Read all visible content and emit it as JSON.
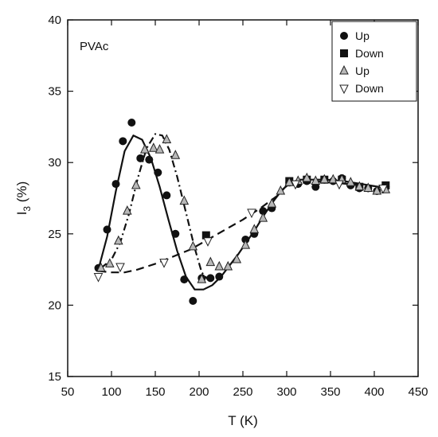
{
  "chart_data": {
    "type": "scatter",
    "title": "",
    "annotation": "PVAc",
    "xlabel": "T (K)",
    "ylabel_main": "I",
    "ylabel_sub": "3",
    "ylabel_rest": " (%)",
    "xlim": [
      50,
      450
    ],
    "ylim": [
      15,
      40
    ],
    "xticks": [
      50,
      100,
      150,
      200,
      250,
      300,
      350,
      400,
      450
    ],
    "yticks": [
      15,
      20,
      25,
      30,
      35,
      40
    ],
    "legend_position": "top-right",
    "series": [
      {
        "name": "Up",
        "marker": "circle",
        "points": [
          [
            85,
            22.6
          ],
          [
            95,
            25.3
          ],
          [
            105,
            28.5
          ],
          [
            113,
            31.5
          ],
          [
            123,
            32.8
          ],
          [
            133,
            30.3
          ],
          [
            143,
            30.2
          ],
          [
            153,
            29.3
          ],
          [
            163,
            27.7
          ],
          [
            173,
            25.0
          ],
          [
            183,
            21.8
          ],
          [
            193,
            20.3
          ],
          [
            203,
            21.9
          ],
          [
            213,
            21.9
          ],
          [
            223,
            22.0
          ],
          [
            253,
            24.6
          ],
          [
            263,
            25.0
          ],
          [
            273,
            26.6
          ],
          [
            283,
            26.8
          ],
          [
            303,
            28.6
          ],
          [
            313,
            28.5
          ],
          [
            323,
            28.7
          ],
          [
            333,
            28.3
          ],
          [
            343,
            28.8
          ],
          [
            353,
            28.7
          ],
          [
            363,
            28.9
          ],
          [
            373,
            28.4
          ],
          [
            383,
            28.2
          ],
          [
            393,
            28.2
          ],
          [
            403,
            28.0
          ],
          [
            413,
            28.3
          ]
        ]
      },
      {
        "name": "Down",
        "marker": "square",
        "points": [
          [
            208,
            24.9
          ],
          [
            303,
            28.7
          ],
          [
            323,
            28.8
          ],
          [
            343,
            28.8
          ],
          [
            363,
            28.8
          ],
          [
            383,
            28.3
          ],
          [
            413,
            28.4
          ]
        ]
      },
      {
        "name": "Up",
        "marker": "triangle-up",
        "points": [
          [
            88,
            22.6
          ],
          [
            98,
            22.9
          ],
          [
            108,
            24.5
          ],
          [
            118,
            26.6
          ],
          [
            128,
            28.4
          ],
          [
            138,
            30.9
          ],
          [
            148,
            31.0
          ],
          [
            155,
            30.9
          ],
          [
            163,
            31.6
          ],
          [
            173,
            30.5
          ],
          [
            183,
            27.3
          ],
          [
            193,
            24.1
          ],
          [
            203,
            21.8
          ],
          [
            213,
            23.0
          ],
          [
            223,
            22.7
          ],
          [
            233,
            22.7
          ],
          [
            243,
            23.2
          ],
          [
            253,
            24.2
          ],
          [
            263,
            25.3
          ],
          [
            273,
            26.1
          ],
          [
            283,
            27.1
          ],
          [
            293,
            28.0
          ],
          [
            303,
            28.6
          ],
          [
            313,
            28.7
          ],
          [
            323,
            28.9
          ],
          [
            333,
            28.7
          ],
          [
            343,
            28.8
          ],
          [
            353,
            28.8
          ],
          [
            363,
            28.8
          ],
          [
            373,
            28.6
          ],
          [
            383,
            28.3
          ],
          [
            393,
            28.2
          ],
          [
            403,
            28.0
          ],
          [
            413,
            28.1
          ]
        ]
      },
      {
        "name": "Down",
        "marker": "triangle-down",
        "points": [
          [
            85,
            22.0
          ],
          [
            110,
            22.7
          ],
          [
            160,
            23.0
          ],
          [
            210,
            24.5
          ],
          [
            260,
            26.5
          ],
          [
            310,
            28.5
          ],
          [
            360,
            28.5
          ],
          [
            410,
            28.2
          ]
        ]
      }
    ],
    "fits": [
      {
        "style": "solid",
        "points": [
          [
            85,
            22.5
          ],
          [
            95,
            24.8
          ],
          [
            105,
            28.0
          ],
          [
            115,
            30.8
          ],
          [
            125,
            31.9
          ],
          [
            135,
            31.6
          ],
          [
            145,
            30.3
          ],
          [
            155,
            28.3
          ],
          [
            165,
            26.0
          ],
          [
            175,
            23.8
          ],
          [
            185,
            22.0
          ],
          [
            195,
            21.1
          ],
          [
            205,
            21.1
          ],
          [
            215,
            21.4
          ],
          [
            225,
            22.0
          ],
          [
            235,
            22.8
          ],
          [
            245,
            23.6
          ],
          [
            255,
            24.5
          ],
          [
            265,
            25.4
          ],
          [
            275,
            26.4
          ],
          [
            285,
            27.3
          ],
          [
            295,
            28.1
          ],
          [
            305,
            28.6
          ],
          [
            315,
            28.8
          ],
          [
            325,
            28.8
          ],
          [
            345,
            28.8
          ],
          [
            365,
            28.7
          ],
          [
            385,
            28.5
          ],
          [
            405,
            28.3
          ],
          [
            415,
            28.2
          ]
        ]
      },
      {
        "style": "dashdot",
        "points": [
          [
            88,
            22.6
          ],
          [
            100,
            23.2
          ],
          [
            110,
            24.4
          ],
          [
            120,
            26.4
          ],
          [
            130,
            28.9
          ],
          [
            140,
            31.0
          ],
          [
            150,
            32.0
          ],
          [
            158,
            31.9
          ],
          [
            166,
            30.9
          ],
          [
            175,
            29.0
          ],
          [
            185,
            26.5
          ],
          [
            195,
            24.0
          ],
          [
            203,
            22.3
          ],
          [
            210,
            21.8
          ]
        ]
      },
      {
        "style": "dashed",
        "points": [
          [
            85,
            22.4
          ],
          [
            100,
            22.3
          ],
          [
            115,
            22.3
          ],
          [
            130,
            22.5
          ],
          [
            150,
            22.9
          ],
          [
            170,
            23.4
          ],
          [
            190,
            23.9
          ],
          [
            210,
            24.6
          ],
          [
            230,
            25.3
          ],
          [
            250,
            26.0
          ],
          [
            270,
            26.8
          ],
          [
            290,
            27.7
          ],
          [
            300,
            28.4
          ],
          [
            310,
            28.6
          ],
          [
            330,
            28.7
          ],
          [
            350,
            28.6
          ],
          [
            370,
            28.5
          ],
          [
            390,
            28.4
          ],
          [
            410,
            28.3
          ]
        ]
      }
    ]
  }
}
